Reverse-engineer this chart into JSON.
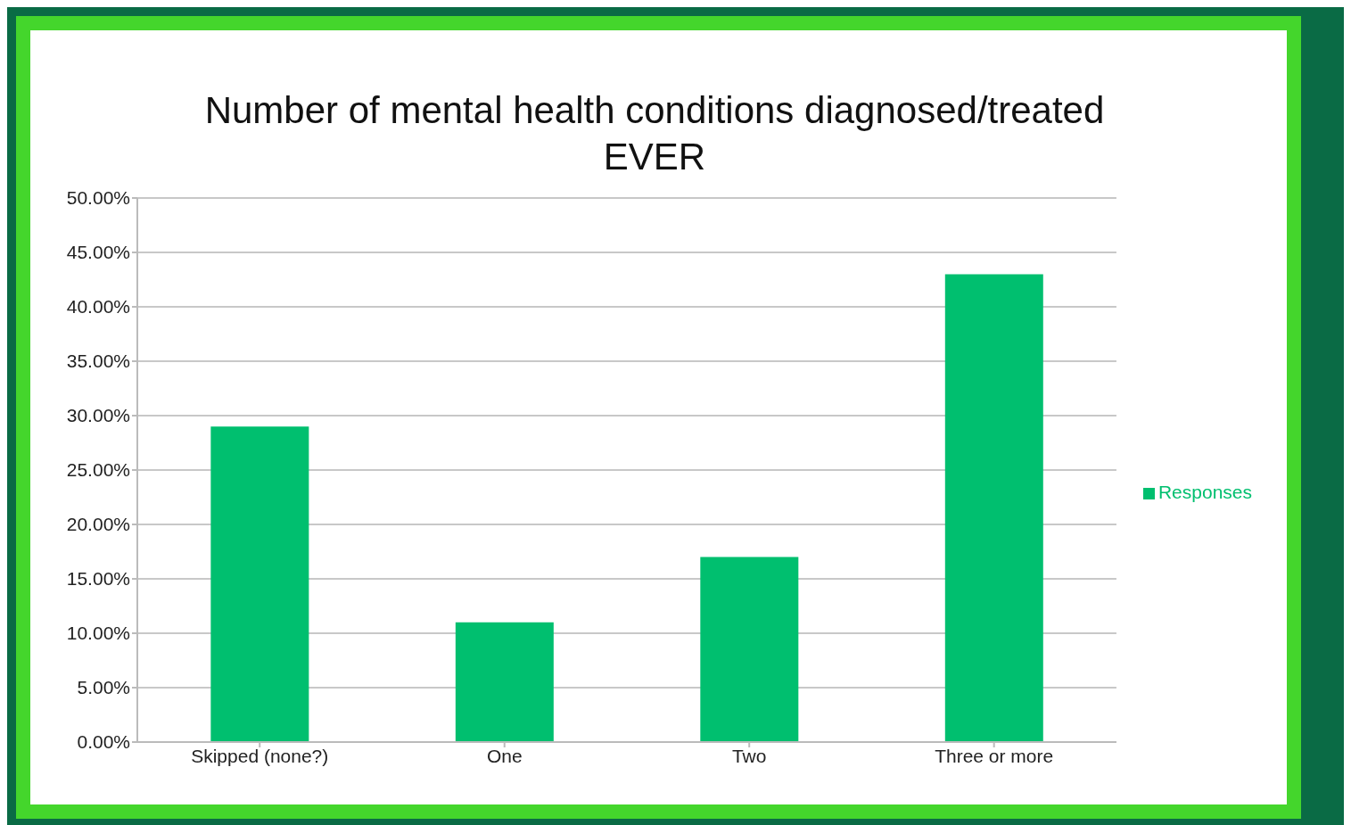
{
  "chart_data": {
    "type": "bar",
    "title": "Number of mental health conditions diagnosed/treated EVER",
    "categories": [
      "Skipped (none?)",
      "One",
      "Two",
      "Three or more"
    ],
    "series": [
      {
        "name": "Responses",
        "color": "#00bf6f",
        "values": [
          29,
          11,
          17,
          43
        ]
      }
    ],
    "ylim": [
      0,
      50
    ],
    "yticks": [
      {
        "value": 0,
        "label": "0.00%"
      },
      {
        "value": 5,
        "label": "5.00%"
      },
      {
        "value": 10,
        "label": "10.00%"
      },
      {
        "value": 15,
        "label": "15.00%"
      },
      {
        "value": 20,
        "label": "20.00%"
      },
      {
        "value": 25,
        "label": "25.00%"
      },
      {
        "value": 30,
        "label": "30.00%"
      },
      {
        "value": 35,
        "label": "35.00%"
      },
      {
        "value": 40,
        "label": "40.00%"
      },
      {
        "value": 45,
        "label": "45.00%"
      },
      {
        "value": 50,
        "label": "50.00%"
      }
    ],
    "grid": "y",
    "legend": "right"
  }
}
